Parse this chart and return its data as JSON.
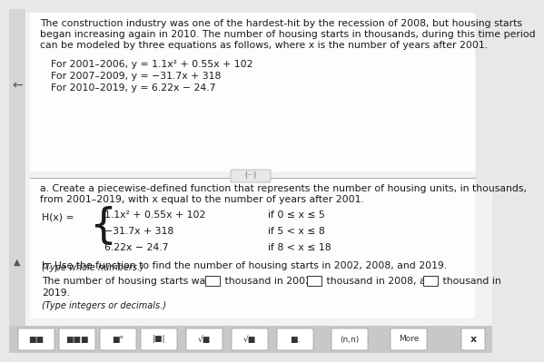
{
  "bg_color": "#e8e8e8",
  "top_bar_color": "#c8c8d0",
  "panel_color": "#f5f5f5",
  "panel2_color": "#f0f0f0",
  "text_color": "#1a1a1a",
  "title_paragraph_lines": [
    "The construction industry was one of the hardest-hit by the recession of 2008, but housing starts",
    "began increasing again in 2010. The number of housing starts in thousands, during this time period",
    "can be modeled by three equations as follows, where x is the number of years after 2001."
  ],
  "equations": [
    "For 2001–2006, y = 1.1x² + 0.55x + 102",
    "For 2007–2009, y = −31.7x + 318",
    "For 2010–2019, y = 6.22x − 24.7"
  ],
  "part_a_label_lines": [
    "a. Create a piecewise-defined function that represents the number of housing units, in thousands,",
    "from 2001–2019, with x equal to the number of years after 2001."
  ],
  "hx_label": "H(x) =",
  "piecewise": [
    {
      "expr": "1.1x² + 0.55x + 102",
      "cond": "if 0 ≤ x ≤ 5"
    },
    {
      "expr": "−31.7x + 318",
      "cond": "if 5 < x ≤ 8"
    },
    {
      "expr": "6.22x − 24.7",
      "cond": "if 8 < x ≤ 18"
    }
  ],
  "type_whole_numbers": "(Type whole numbers.)",
  "part_b_label": "b. Use the function to find the number of housing starts in 2002, 2008, and 2019.",
  "part_b_line1_pre": "The number of housing starts was",
  "part_b_line1_mid1": "thousand in 2002,",
  "part_b_line1_mid2": "thousand in 2008, and",
  "part_b_line1_end": "thousand in",
  "part_b_line2": "2019.",
  "type_integers": "(Type integers or decimals.)",
  "toolbar_items": [
    "■■",
    "■■■",
    "■°",
    "|■|",
    "√■",
    "√■",
    "■.",
    "(n,n)",
    "More"
  ]
}
